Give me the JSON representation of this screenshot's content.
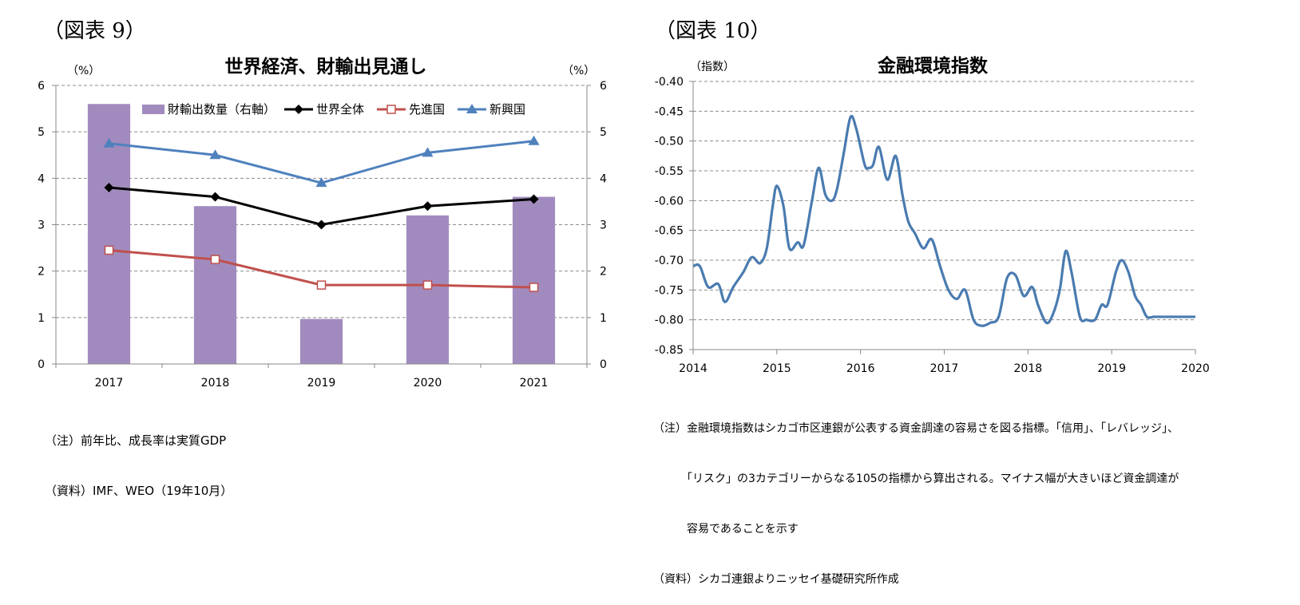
{
  "left_figure": {
    "label": "（図表 9）",
    "note_lines": [
      "（注）前年比、成長率は実質GDP",
      "（資料）IMF、WEO（19年10月）"
    ]
  },
  "right_figure": {
    "label": "（図表 10）",
    "note_lines": [
      "（注）金融環境指数はシカゴ市区連銀が公表する資金調達の容易さを図る指標。「信用」、「レバレッジ」、",
      "　　　「リスク」の3カテゴリーからなる105の指標から算出される。マイナス幅が大きいほど資金調達が",
      "　　　容易であることを示す",
      "（資料）シカゴ連銀よりニッセイ基礎研究所作成"
    ]
  },
  "chart_data": [
    {
      "type": "bar+line",
      "title": "世界経済、財輸出見通し",
      "left_unit": "（%）",
      "right_unit": "（%）",
      "categories": [
        "2017",
        "2018",
        "2019",
        "2020",
        "2021"
      ],
      "ylim": [
        0,
        6
      ],
      "yticks": [
        "0",
        "1",
        "2",
        "3",
        "4",
        "5",
        "6"
      ],
      "y2lim": [
        0,
        6
      ],
      "y2ticks": [
        "0",
        "1",
        "2",
        "3",
        "4",
        "5",
        "6"
      ],
      "bar_series": {
        "name": "財輸出数量（右軸）",
        "axis": "right",
        "color": "#A18BBE",
        "values": [
          5.6,
          3.4,
          0.97,
          3.2,
          3.6
        ]
      },
      "line_series": [
        {
          "name": "世界全体",
          "color": "#000000",
          "marker": "diamond",
          "values": [
            3.8,
            3.6,
            3.0,
            3.4,
            3.55
          ]
        },
        {
          "name": "先進国",
          "color": "#C0504D",
          "marker": "square",
          "values": [
            2.45,
            2.25,
            1.7,
            1.7,
            1.65
          ]
        },
        {
          "name": "新興国",
          "color": "#4F81BD",
          "marker": "triangle",
          "values": [
            4.75,
            4.5,
            3.9,
            4.55,
            4.8
          ]
        }
      ],
      "legend_position": "top"
    },
    {
      "type": "line",
      "title": "金融環境指数",
      "unit": "（指数）",
      "ylim": [
        -0.85,
        -0.4
      ],
      "yticks": [
        "-0.40",
        "-0.45",
        "-0.50",
        "-0.55",
        "-0.60",
        "-0.65",
        "-0.70",
        "-0.75",
        "-0.80",
        "-0.85"
      ],
      "xlim": [
        2014,
        2020
      ],
      "xticks": [
        "2014",
        "2015",
        "2016",
        "2017",
        "2018",
        "2019",
        "2020"
      ],
      "series": [
        {
          "name": "金融環境指数",
          "color": "#4A7BB0",
          "x": [
            2014.0,
            2014.08,
            2014.18,
            2014.3,
            2014.38,
            2014.48,
            2014.6,
            2014.7,
            2014.8,
            2014.88,
            2014.95,
            2015.0,
            2015.08,
            2015.15,
            2015.25,
            2015.32,
            2015.42,
            2015.5,
            2015.58,
            2015.66,
            2015.72,
            2015.8,
            2015.88,
            2015.95,
            2016.05,
            2016.1,
            2016.15,
            2016.22,
            2016.32,
            2016.42,
            2016.5,
            2016.57,
            2016.65,
            2016.75,
            2016.85,
            2016.95,
            2017.05,
            2017.15,
            2017.25,
            2017.35,
            2017.45,
            2017.55,
            2017.65,
            2017.75,
            2017.85,
            2017.95,
            2018.05,
            2018.12,
            2018.22,
            2018.3,
            2018.38,
            2018.45,
            2018.52,
            2018.62,
            2018.7,
            2018.8,
            2018.88,
            2018.95,
            2019.05,
            2019.12,
            2019.2,
            2019.28,
            2019.35,
            2019.42,
            2019.5,
            2019.55,
            2019.62,
            2019.7,
            2019.75,
            2019.82,
            2019.9,
            2020.0
          ],
          "values": [
            -0.71,
            -0.71,
            -0.745,
            -0.74,
            -0.77,
            -0.745,
            -0.72,
            -0.695,
            -0.705,
            -0.68,
            -0.61,
            -0.575,
            -0.61,
            -0.68,
            -0.67,
            -0.675,
            -0.6,
            -0.545,
            -0.59,
            -0.6,
            -0.58,
            -0.52,
            -0.46,
            -0.48,
            -0.54,
            -0.545,
            -0.54,
            -0.51,
            -0.565,
            -0.525,
            -0.59,
            -0.635,
            -0.655,
            -0.68,
            -0.665,
            -0.71,
            -0.75,
            -0.765,
            -0.75,
            -0.8,
            -0.81,
            -0.805,
            -0.795,
            -0.73,
            -0.725,
            -0.76,
            -0.745,
            -0.775,
            -0.805,
            -0.79,
            -0.75,
            -0.685,
            -0.72,
            -0.795,
            -0.8,
            -0.8,
            -0.775,
            -0.775,
            -0.72,
            -0.7,
            -0.72,
            -0.76,
            -0.775,
            -0.795,
            -0.795,
            -0.795,
            -0.795,
            -0.795,
            -0.795,
            -0.795,
            -0.795,
            -0.795
          ]
        }
      ]
    }
  ]
}
